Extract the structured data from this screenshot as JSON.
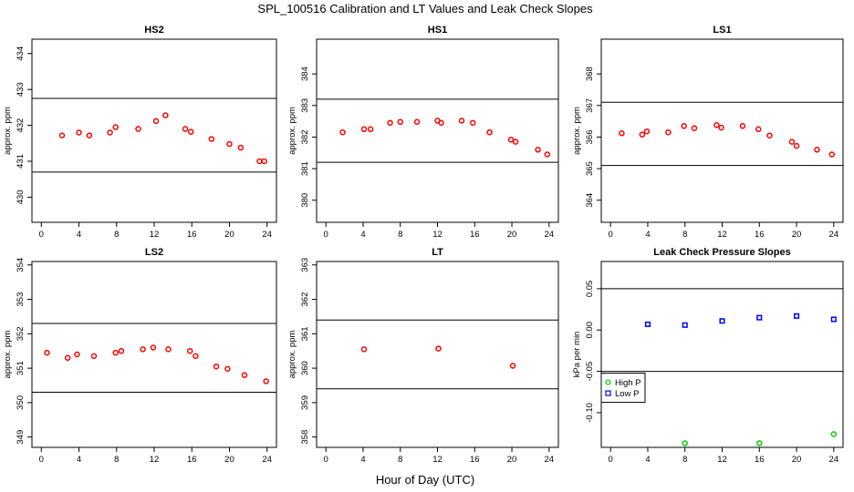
{
  "figure": {
    "title": "SPL_100516  Calibration and LT Values and Leak Check Slopes",
    "xlabel": "Hour of Day (UTC)"
  },
  "chart_data": [
    {
      "type": "scatter",
      "title": "HS2",
      "ylabel": "approx. ppm",
      "xlim": [
        -1,
        25
      ],
      "ylim": [
        429.3,
        434.4
      ],
      "xticks": [
        0,
        4,
        8,
        12,
        16,
        20,
        24
      ],
      "yticks": [
        430,
        431,
        432,
        433,
        434
      ],
      "hlines": [
        432.75,
        430.7
      ],
      "series": [
        {
          "color": "#ff0000",
          "marker": "circle",
          "x": [
            2.2,
            4.0,
            5.1,
            7.3,
            7.9,
            10.3,
            12.2,
            13.2,
            15.3,
            15.9,
            18.1,
            20.0,
            21.2,
            23.2,
            23.7
          ],
          "y": [
            431.72,
            431.8,
            431.72,
            431.8,
            431.95,
            431.9,
            432.12,
            432.28,
            431.9,
            431.82,
            431.62,
            431.48,
            431.38,
            431.0,
            431.0
          ]
        }
      ]
    },
    {
      "type": "scatter",
      "title": "HS1",
      "ylabel": "approx. ppm",
      "xlim": [
        -1,
        25
      ],
      "ylim": [
        379.3,
        385.1
      ],
      "xticks": [
        0,
        4,
        8,
        12,
        16,
        20,
        24
      ],
      "yticks": [
        380,
        381,
        382,
        383,
        384
      ],
      "hlines": [
        383.2,
        381.2
      ],
      "series": [
        {
          "color": "#ff0000",
          "marker": "circle",
          "x": [
            1.8,
            4.1,
            4.8,
            6.9,
            8.0,
            9.8,
            12.0,
            12.4,
            14.6,
            15.8,
            17.6,
            19.9,
            20.4,
            22.8,
            23.8
          ],
          "y": [
            382.15,
            382.25,
            382.25,
            382.45,
            382.48,
            382.48,
            382.52,
            382.45,
            382.52,
            382.45,
            382.15,
            381.92,
            381.85,
            381.6,
            381.45
          ]
        }
      ]
    },
    {
      "type": "scatter",
      "title": "LS1",
      "ylabel": "approx. ppm",
      "xlim": [
        -1,
        25
      ],
      "ylim": [
        363.3,
        369.1
      ],
      "xticks": [
        0,
        4,
        8,
        12,
        16,
        20,
        24
      ],
      "yticks": [
        364,
        365,
        366,
        367,
        368
      ],
      "hlines": [
        367.1,
        365.1
      ],
      "series": [
        {
          "color": "#ff0000",
          "marker": "circle",
          "x": [
            1.2,
            3.4,
            3.9,
            6.2,
            7.9,
            9.0,
            11.4,
            11.9,
            14.2,
            15.9,
            17.1,
            19.5,
            20.0,
            22.2,
            23.8
          ],
          "y": [
            366.12,
            366.08,
            366.18,
            366.15,
            366.35,
            366.28,
            366.38,
            366.3,
            366.35,
            366.25,
            366.05,
            365.85,
            365.72,
            365.6,
            365.45
          ]
        }
      ]
    },
    {
      "type": "scatter",
      "title": "LS2",
      "ylabel": "approx. ppm",
      "xlim": [
        -1,
        25
      ],
      "ylim": [
        348.7,
        354.1
      ],
      "xticks": [
        0,
        4,
        8,
        12,
        16,
        20,
        24
      ],
      "yticks": [
        349,
        350,
        351,
        352,
        353,
        354
      ],
      "hlines": [
        352.3,
        350.3
      ],
      "series": [
        {
          "color": "#ff0000",
          "marker": "circle",
          "x": [
            0.6,
            2.8,
            3.8,
            5.6,
            7.9,
            8.5,
            10.8,
            11.9,
            13.5,
            15.8,
            16.4,
            18.6,
            19.8,
            21.6,
            23.9
          ],
          "y": [
            351.45,
            351.3,
            351.4,
            351.35,
            351.45,
            351.5,
            351.55,
            351.6,
            351.55,
            351.5,
            351.35,
            351.05,
            350.98,
            350.8,
            350.62
          ]
        }
      ]
    },
    {
      "type": "scatter",
      "title": "LT",
      "ylabel": "approx. ppm",
      "xlim": [
        -1,
        25
      ],
      "ylim": [
        357.7,
        363.1
      ],
      "xticks": [
        0,
        4,
        8,
        12,
        16,
        20,
        24
      ],
      "yticks": [
        358,
        359,
        360,
        361,
        362,
        363
      ],
      "hlines": [
        361.4,
        359.4
      ],
      "series": [
        {
          "color": "#ff0000",
          "marker": "circle",
          "x": [
            4.1,
            12.1,
            20.1
          ],
          "y": [
            360.55,
            360.57,
            360.07
          ]
        }
      ]
    },
    {
      "type": "scatter",
      "title": "Leak Check Pressure Slopes",
      "ylabel": "kPa per min",
      "xlim": [
        -1,
        25
      ],
      "ylim": [
        -0.142,
        0.083
      ],
      "xticks": [
        0,
        4,
        8,
        12,
        16,
        20,
        24
      ],
      "yticks": [
        -0.1,
        -0.05,
        0.0,
        0.05
      ],
      "ytick_labels": [
        "-0.10",
        "-0.05",
        "0.00",
        "0.05"
      ],
      "hlines": [
        0.05,
        -0.05
      ],
      "legend": "middle-left",
      "series": [
        {
          "name": "High P",
          "color": "#00cc00",
          "marker": "circle",
          "x": [
            8,
            16,
            24
          ],
          "y": [
            -0.137,
            -0.137,
            -0.126
          ]
        },
        {
          "name": "Low P",
          "color": "#0000ff",
          "marker": "square",
          "x": [
            4,
            8,
            12,
            16,
            20,
            24
          ],
          "y": [
            0.007,
            0.006,
            0.011,
            0.015,
            0.017,
            0.013
          ]
        }
      ]
    }
  ]
}
